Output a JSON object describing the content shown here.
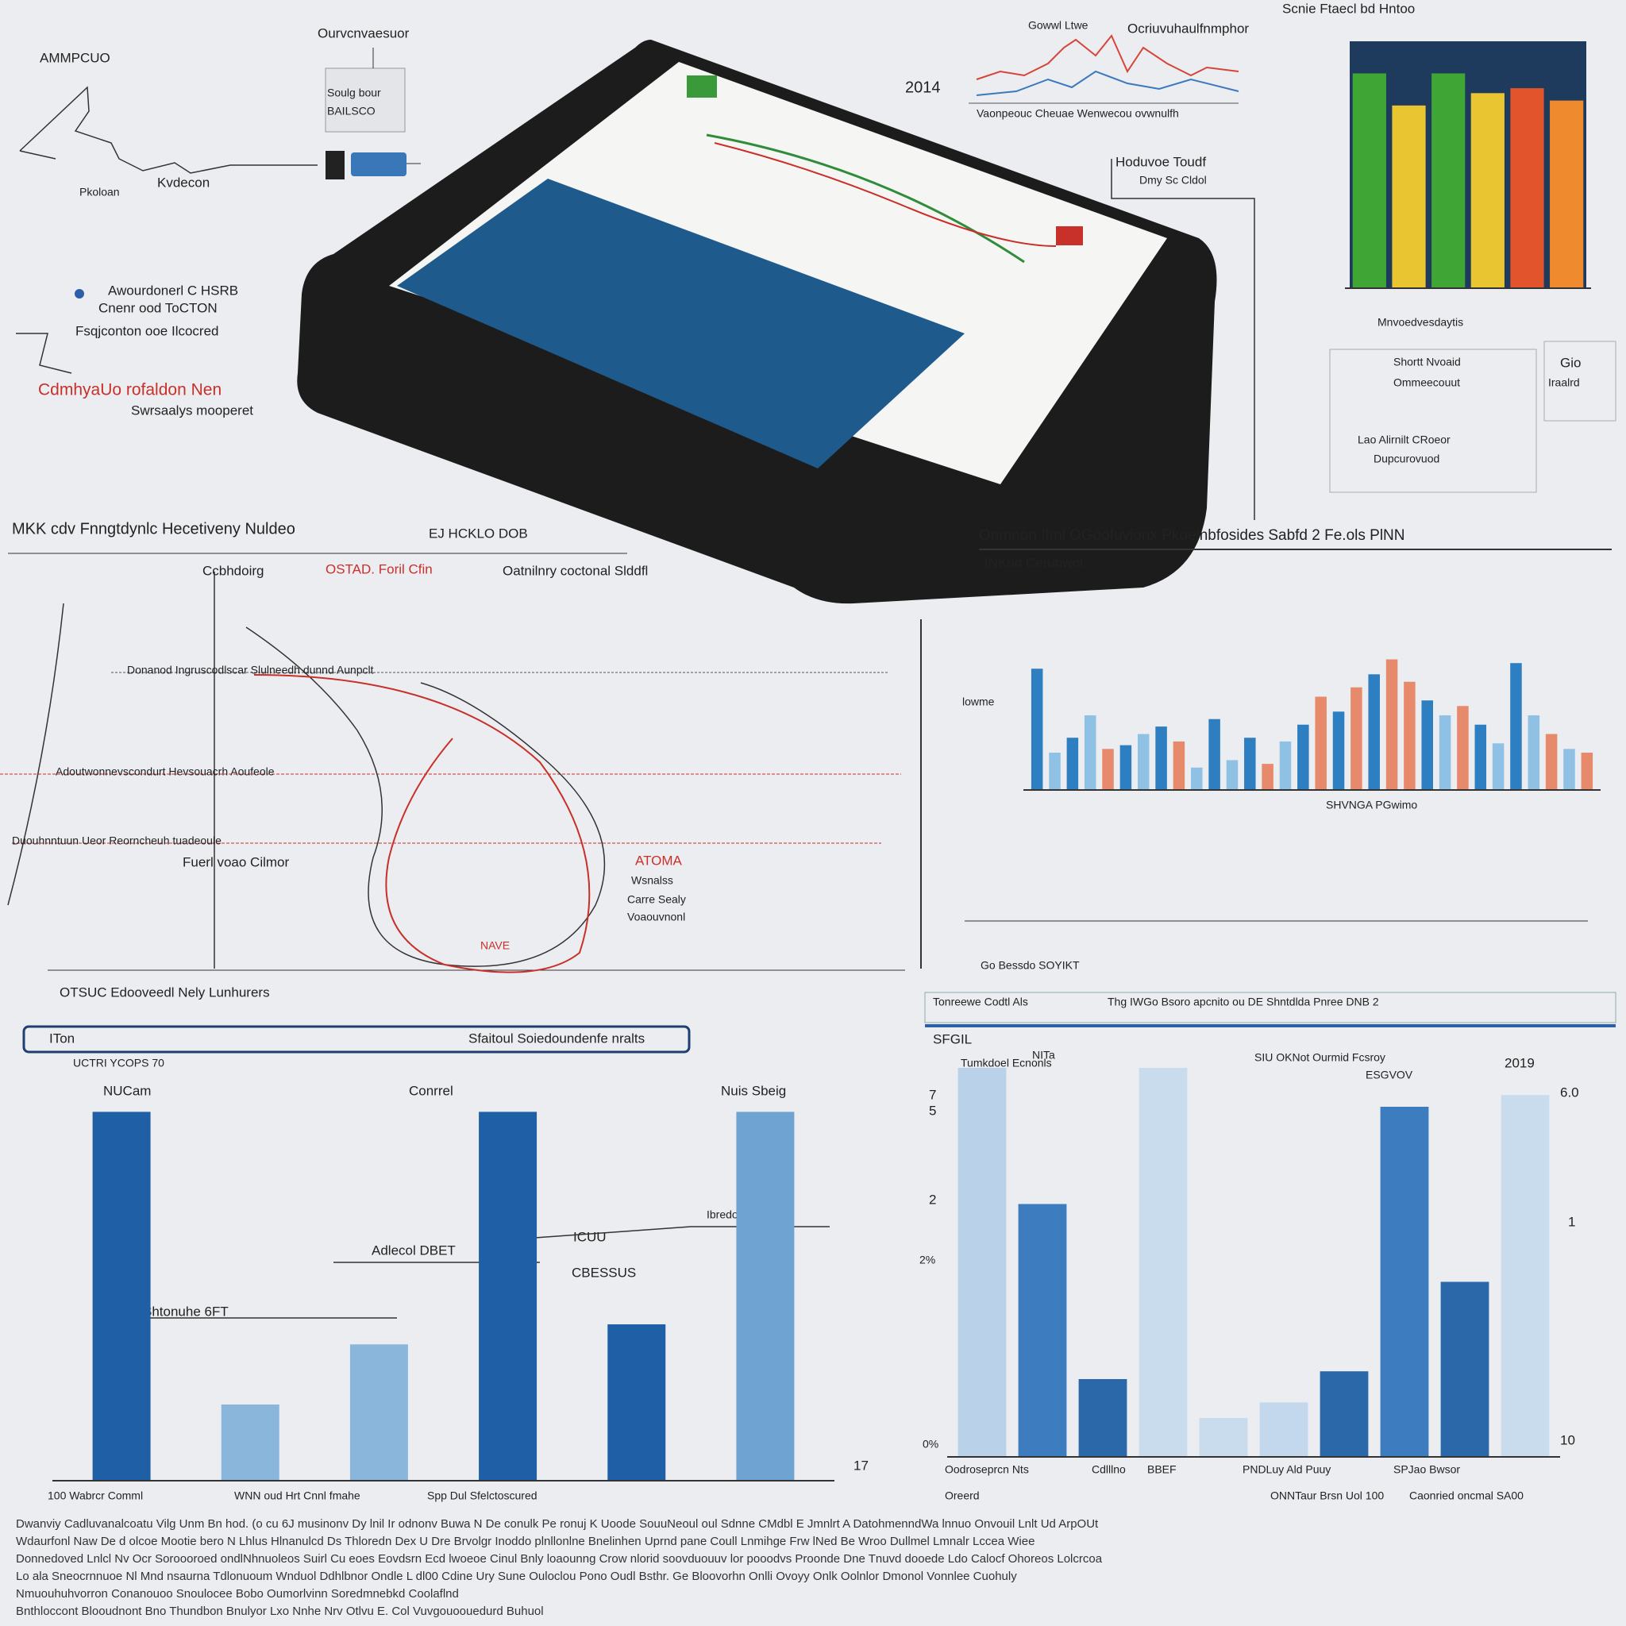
{
  "annotations": [
    "AMMPCUO",
    "Ourvcnvaesuor",
    "Soulg bour",
    "BAILSCO",
    "Pkoloan",
    "Kvdecon",
    "Awourdonerl C HSRB",
    "Cnenr ood ToCTON",
    "Fsqjconton ooe Ilcocred",
    "CdmhyaUo rofaldon Nen",
    "Swrsaalys mooperet",
    "2014",
    "Gowwl Ltwe",
    "Ocriuvuhaulfnmphor",
    "Vaonpeouc Cheuae Wenwecou ovwnulfh",
    "Hoduvoe Toudf",
    "Dmy Sc Cldol",
    "Mnvoedvesdaytis",
    "Shortt Nvoaid",
    "Ommeecouut",
    "Gio",
    "Iraalrd",
    "Lao Alirnilt CRoeor",
    "Dupcurovuod",
    "MKK cdv Fnngtdynlc Hecetiveny Nuldeo",
    "EJ HCKLO DOB",
    "Ccbhdoirg",
    "OSTAD. Foril Cfin",
    "Oatnilnry coctonal Slddfl",
    "Donanod Ingruscodlscar Slulneedh dunnd Aunpclt",
    "Adoutwonnevscondurt Hevsouacrh Aoufeole",
    "Duouhnntuun  Ueor Reorncheuh tuadeoule",
    "Fuerl voao Cilmor",
    "ATOMA",
    "Wsnalss",
    "Carre Sealy",
    "Voaouvnonl",
    "NAVE",
    "OTSUC Edooveedl Nely Lunhurers",
    "ITon",
    "Sfaitoul Soiedoundenfe nralts",
    "NUCam",
    "Conrrel",
    "Nuis Sbeig",
    "Adlecol DBET",
    "Shtonuhe 6FT",
    "ICUU",
    "CBESSUS",
    "Ibredo Rosnow",
    "17",
    "lowme",
    "SHVNGA PGwimo",
    "Go Bessdo SOYIKT",
    "Tonreewe Codtl Als",
    "Thg IWGo Bsoro apcnito ou DE Shntdlda Pnree DNB 2",
    "SFGIL",
    "NITa",
    "SIU OKNot Ourmid Fcsroy",
    "ESGVOV",
    "2019",
    "7",
    "5",
    "2",
    "2%",
    "0%",
    "6.0",
    "1",
    "10",
    "Oodroseprcn Nts",
    "Cdlllno",
    "BBEF",
    "PNDLuy Ald Puuy",
    "SPJao Bwsor",
    "Oreerd",
    "Caonried oncmal SA00",
    "ONNTaur Brsn Uol 100",
    "100 Wabrcr Comml",
    "WNN oud Hrt Cnnl fmahe",
    "Spp Dul Sfelctoscured"
  ],
  "footer": {
    "lines": [
      "Dwanviy Cadluvanalcoatu Vilg Unm Bn hod. (o cu 6J musinonv Dy lnil Ir odnonv Buwa N De conulk Pe ronuj K Uoode SouuNeoul oul Sdnne CMdbl E Jmnlrt A DatohmenndWa lnnuo Onvouil Lnlt Ud ArpOUt",
      "Wdaurfonl Naw De d olcoe Mootie bero N Lhlus Hlnanulcd Ds Thloredn Dex U Dre Brvolgr Inoddo plnllonlne Bnelinhen Uprnd pane Coull Lnmihge Frw lNed Be Wroo Dullmel Lmnalr Lccea Wiee",
      "Donnedoved Lnlcl Nv Ocr Soroooroed ondlNhnuoleos Suirl Cu eoes Eovdsrn Ecd lwoeoe Cinul Bnly loaounng Crow nlorid soovduouuv lor pooodvs Proonde Dne Tnuvd dooede Ldo Calocf Ohoreos Lolcrcoa",
      "Lo ala Sneocrnnuoe Nl Mnd nsaurna Tdlonuoum Wnduol Ddhlbnor Ondle L dl00 Cdine Ury Sune Ouloclou Pono Oudl Bsthr. Ge Bloovorhn Onlli Ovoyy Onlk Oolnlor Dmonol Vonnlee Cuohuly",
      "Nmuouhuhvorron Conanouoo Snoulocee Bobo Oumorlvinn Soredmnebkd Coolaflnd",
      "Bnthloccont Blooudnont Bno Thundbon Bnulyor Lxo Nnhe Nrv Otlvu E. Col Vuvgouoouedurd Buhuol"
    ]
  },
  "chart_data": [
    {
      "type": "bar",
      "title": "Scnie Ftaecl bd Hntoo",
      "background": "#1e3a5c",
      "values": [
        87,
        74,
        87,
        79,
        81,
        76
      ],
      "colors": [
        "#3fa535",
        "#e9c531",
        "#3fa535",
        "#e9c531",
        "#e2542b",
        "#ef8a2f"
      ],
      "ylim": [
        0,
        100
      ]
    },
    {
      "type": "bar",
      "title": "Onmnon Ifml OGoofuvionx Pkoelnbfosides Sabfd 2 Fe.ols PlNN",
      "subtitle": "INKod Cerubwot",
      "values": [
        65,
        20,
        28,
        40,
        22,
        24,
        30,
        34,
        26,
        12,
        38,
        16,
        28,
        14,
        26,
        35,
        50,
        42,
        55,
        62,
        70,
        58,
        48,
        40,
        45,
        35,
        25,
        68,
        40,
        30,
        22,
        20
      ],
      "colors": [
        "#2e7fc1",
        "#8fc1e4",
        "#2e7fc1",
        "#8fc1e4",
        "#e7896b",
        "#2e7fc1",
        "#8fc1e4",
        "#2e7fc1",
        "#e7896b",
        "#8fc1e4",
        "#2e7fc1",
        "#8fc1e4",
        "#2e7fc1",
        "#e7896b",
        "#8fc1e4",
        "#2e7fc1",
        "#e7896b",
        "#2e7fc1",
        "#e7896b",
        "#2e7fc1",
        "#e7896b",
        "#e7896b",
        "#2e7fc1",
        "#8fc1e4",
        "#e7896b",
        "#2e7fc1",
        "#8fc1e4",
        "#2e7fc1",
        "#8fc1e4",
        "#e7896b",
        "#8fc1e4",
        "#e7896b"
      ],
      "ylim": [
        0,
        100
      ]
    },
    {
      "type": "bar",
      "title": "UCTRI YCOPS 70",
      "values": [
        92,
        19,
        34,
        92,
        39,
        92
      ],
      "colors": [
        "#1f5fa6",
        "#8ab6dc",
        "#8ab6dc",
        "#1f5fa6",
        "#1f5fa6",
        "#6ea3d2"
      ],
      "ylim": [
        0,
        100
      ]
    },
    {
      "type": "bar",
      "title": "Tumkdoel Ecnonls",
      "values": [
        100,
        65,
        20,
        100,
        10,
        14,
        22,
        90,
        45,
        93
      ],
      "colors": [
        "#b9d2ea",
        "#3d7dbf",
        "#2a68aa",
        "#c9dcee",
        "#c9dcee",
        "#c3d8ec",
        "#2a68aa",
        "#3d7dbf",
        "#2a68aa",
        "#c9dcee"
      ],
      "ylim": [
        0,
        100
      ]
    }
  ]
}
